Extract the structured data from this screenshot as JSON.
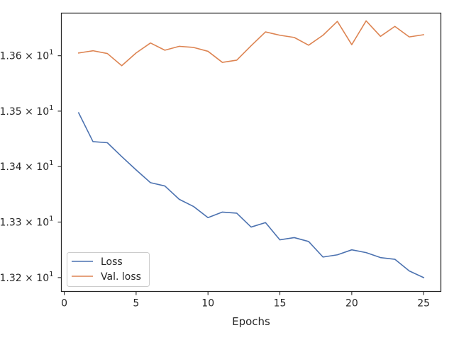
{
  "chart_data": {
    "type": "line",
    "title": "",
    "xlabel": "Epochs",
    "ylabel": "",
    "xlim": [
      -0.2,
      26.2
    ],
    "ylim": [
      13.3175,
      13.3677
    ],
    "x_scale": "linear",
    "y_scale": "log",
    "grid": false,
    "legend_position": "lower-left",
    "x_ticks": [
      0,
      5,
      10,
      15,
      20,
      25
    ],
    "x_tick_labels": [
      "0",
      "5",
      "10",
      "15",
      "20",
      "25"
    ],
    "y_ticks": [
      13.32,
      13.33,
      13.34,
      13.35,
      13.36
    ],
    "y_tick_labels": [
      {
        "mantissa": "1.32",
        "base": "10",
        "exponent": "1"
      },
      {
        "mantissa": "1.33",
        "base": "10",
        "exponent": "1"
      },
      {
        "mantissa": "1.34",
        "base": "10",
        "exponent": "1"
      },
      {
        "mantissa": "1.35",
        "base": "10",
        "exponent": "1"
      },
      {
        "mantissa": "1.36",
        "base": "10",
        "exponent": "1"
      }
    ],
    "times_symbol": "×",
    "x": [
      1,
      2,
      3,
      4,
      5,
      6,
      7,
      8,
      9,
      10,
      11,
      12,
      13,
      14,
      15,
      16,
      17,
      18,
      19,
      20,
      21,
      22,
      23,
      24,
      25
    ],
    "series": [
      {
        "name": "Loss",
        "color": "#4c72b0",
        "values": [
          13.3497,
          13.3445,
          13.3443,
          13.3418,
          13.3394,
          13.3371,
          13.3365,
          13.3341,
          13.3328,
          13.3308,
          13.3318,
          13.3316,
          13.3291,
          13.3299,
          13.3268,
          13.3272,
          13.3265,
          13.3237,
          13.3241,
          13.325,
          13.3245,
          13.3236,
          13.3233,
          13.3212,
          13.32
        ]
      },
      {
        "name": "Val. loss",
        "color": "#dd8452",
        "values": [
          13.3605,
          13.3609,
          13.3604,
          13.3582,
          13.3605,
          13.3623,
          13.361,
          13.3617,
          13.3615,
          13.3608,
          13.3588,
          13.3592,
          13.3618,
          13.3643,
          13.3637,
          13.3633,
          13.3619,
          13.3637,
          13.3662,
          13.362,
          13.3663,
          13.3635,
          13.3653,
          13.3634,
          13.3638
        ]
      }
    ]
  }
}
